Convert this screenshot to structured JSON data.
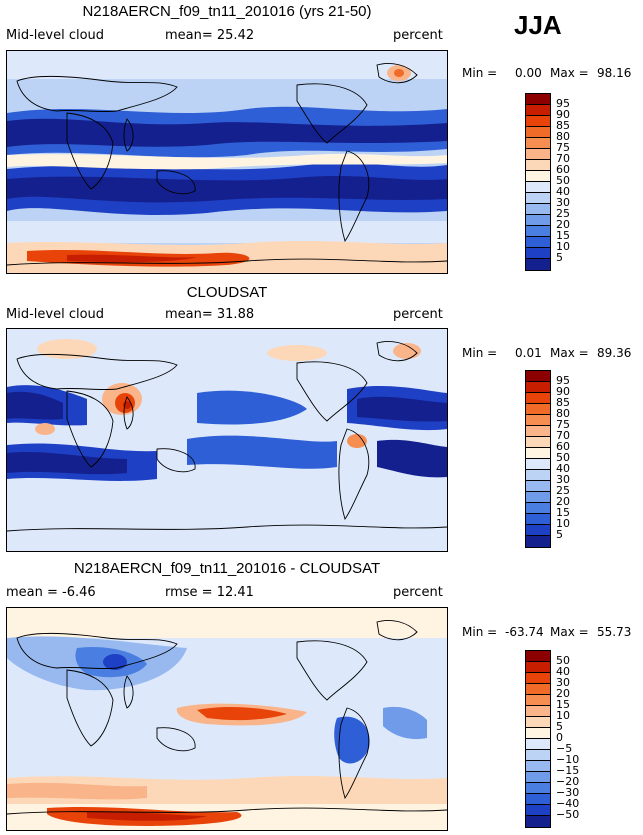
{
  "season": "JJA",
  "unit_label": "percent",
  "panels": [
    {
      "title": "N218AERCN_f09_tn11_201016 (yrs 21-50)",
      "left_label": "Mid-level cloud",
      "center_label": "mean=  25.42",
      "right_label": "percent",
      "min_label": "Min =",
      "min_value": "0.00",
      "max_label": "Max =",
      "max_value": "98.16",
      "colorbar_labels": [
        "95",
        "90",
        "85",
        "80",
        "75",
        "70",
        "60",
        "50",
        "40",
        "30",
        "25",
        "20",
        "15",
        "10",
        "5"
      ],
      "colorbar_colors": [
        "#8c0000",
        "#c81e00",
        "#e8440a",
        "#f06a28",
        "#f68e52",
        "#fab48a",
        "#fdd8b8",
        "#fff3e2",
        "#dde9fb",
        "#bcd3f5",
        "#97b9ef",
        "#6f9be8",
        "#4a7ee0",
        "#2f5fd6",
        "#1e40c4",
        "#14208e"
      ]
    },
    {
      "title": "CLOUDSAT",
      "left_label": "Mid-level cloud",
      "center_label": "mean=  31.88",
      "right_label": "percent",
      "min_label": "Min =",
      "min_value": "0.01",
      "max_label": "Max =",
      "max_value": "89.36",
      "colorbar_labels": [
        "95",
        "90",
        "85",
        "80",
        "75",
        "70",
        "60",
        "50",
        "40",
        "30",
        "25",
        "20",
        "15",
        "10",
        "5"
      ],
      "colorbar_colors": [
        "#8c0000",
        "#c81e00",
        "#e8440a",
        "#f06a28",
        "#f68e52",
        "#fab48a",
        "#fdd8b8",
        "#fff3e2",
        "#dde9fb",
        "#bcd3f5",
        "#97b9ef",
        "#6f9be8",
        "#4a7ee0",
        "#2f5fd6",
        "#1e40c4",
        "#14208e"
      ]
    },
    {
      "title": "N218AERCN_f09_tn11_201016 - CLOUDSAT",
      "left_label": "mean =  -6.46",
      "center_label": "rmse =  12.41",
      "right_label": "percent",
      "min_label": "Min =",
      "min_value": "-63.74",
      "max_label": "Max =",
      "max_value": "55.73",
      "colorbar_labels": [
        "50",
        "40",
        "30",
        "20",
        "15",
        "10",
        "5",
        "0",
        "−5",
        "−10",
        "−15",
        "−20",
        "−30",
        "−40",
        "−50"
      ],
      "colorbar_colors": [
        "#8c0000",
        "#c81e00",
        "#e8440a",
        "#f06a28",
        "#f68e52",
        "#fab48a",
        "#fdd8b8",
        "#fff3e2",
        "#dde9fb",
        "#bcd3f5",
        "#97b9ef",
        "#6f9be8",
        "#4a7ee0",
        "#2f5fd6",
        "#1e40c4",
        "#14208e"
      ]
    }
  ]
}
